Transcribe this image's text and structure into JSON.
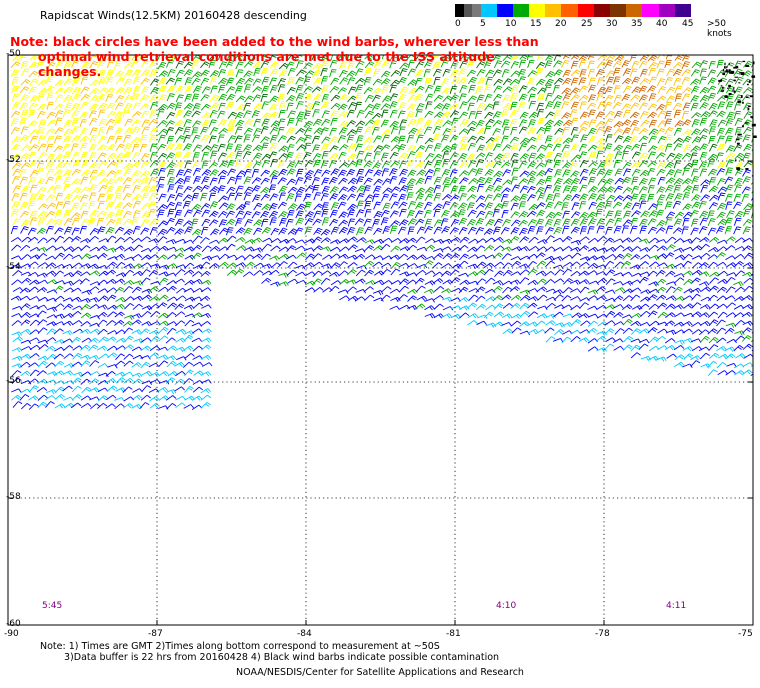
{
  "title": "Rapidscat Winds(12.5KM) 20160428 descending",
  "note": {
    "line1": "Note: black circles have been added to the wind barbs, wherever less than",
    "line2": "optimal wind retrieval conditions are met due to the ISS altitude changes."
  },
  "scale": {
    "labels": [
      "0",
      "5",
      "10",
      "15",
      "20",
      "25",
      "30",
      "35",
      "40",
      "45",
      ">50 knots"
    ],
    "colors": [
      "#000000",
      "#555555",
      "#7a7a7a",
      "#00c8ff",
      "#0000ff",
      "#00aa00",
      "#ffff00",
      "#ffc000",
      "#ff6000",
      "#ff0000",
      "#8b0000",
      "#7a3500",
      "#cc6600",
      "#ff00ff",
      "#a000c0",
      "#400090"
    ]
  },
  "axes": {
    "lat_labels": [
      "-50",
      "-52",
      "-54",
      "-56",
      "-58",
      "-60"
    ],
    "lon_labels": [
      "-90",
      "-87",
      "-84",
      "-81",
      "-78",
      "-75"
    ]
  },
  "time_labels": [
    "5:45",
    "4:10",
    "4:11"
  ],
  "footer": {
    "line1": "Note: 1) Times are GMT 2)Times along bottom correspond to measurement at ~50S",
    "line2": "3)Data buffer is 22 hrs from 20160428 4) Black wind barbs indicate possible contamination",
    "line3": "NOAA/NESDIS/Center for Satellite Applications and Research"
  }
}
